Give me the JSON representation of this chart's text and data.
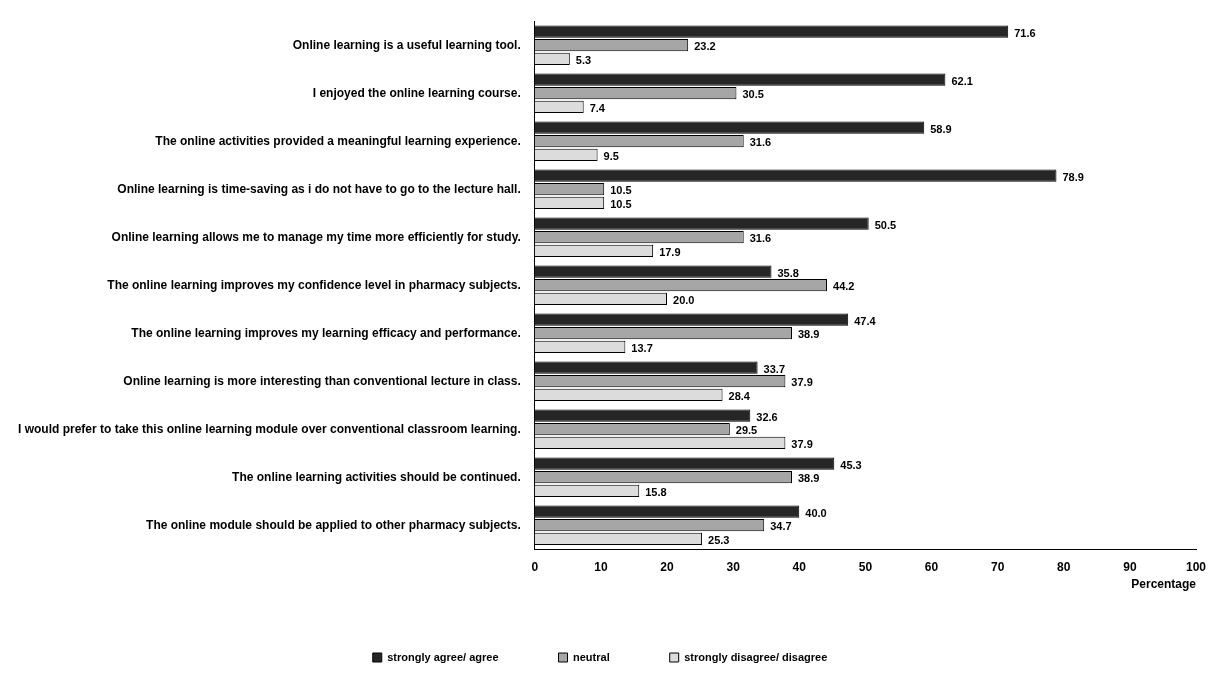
{
  "chart_data": {
    "type": "bar",
    "orientation": "horizontal",
    "xlabel": "Percentage",
    "categories": [
      "Online learning is a useful learning tool.",
      "I enjoyed the online learning course.",
      "The online activities provided a meaningful learning experience.",
      "Online learning is time-saving as i do not have to go to the lecture hall.",
      "Online learning allows me to manage my time more efficiently for study.",
      "The online learning improves my confidence level in pharmacy subjects.",
      "The online learning improves my learning efficacy and performance.",
      "Online learning is more interesting than conventional lecture in class.",
      "I would prefer to take this online learning module over conventional classroom learning.",
      "The online learning activities should be continued.",
      "The online module should be applied to other pharmacy subjects."
    ],
    "series": [
      {
        "name": "strongly agree/ agree",
        "color": "#262626",
        "values": [
          71.6,
          62.1,
          58.9,
          78.9,
          50.5,
          35.8,
          47.4,
          33.7,
          32.6,
          45.3,
          40.0
        ],
        "value_labels": [
          "71.6",
          "62.1",
          "58.9",
          "78.9",
          "50.5",
          "35.8",
          "47.4",
          "33.7",
          "32.6",
          "45.3",
          "40.0"
        ]
      },
      {
        "name": "neutral",
        "color": "#a6a6a6",
        "values": [
          23.2,
          30.5,
          31.6,
          10.5,
          31.6,
          44.2,
          38.9,
          37.9,
          29.5,
          38.9,
          34.7
        ],
        "value_labels": [
          "23.2",
          "30.5",
          "31.6",
          "10.5",
          "31.6",
          "44.2",
          "38.9",
          "37.9",
          "29.5",
          "38.9",
          "34.7"
        ]
      },
      {
        "name": "strongly disagree/ disagree",
        "color": "#dcdcdc",
        "values": [
          5.3,
          7.4,
          9.5,
          10.5,
          17.9,
          20.0,
          13.7,
          28.4,
          37.9,
          15.8,
          25.3
        ],
        "value_labels": [
          "5.3",
          "7.4",
          "9.5",
          "10.5",
          "17.9",
          "20.0",
          "13.7",
          "28.4",
          "37.9",
          "15.8",
          "25.3"
        ]
      }
    ],
    "xlim": [
      0,
      100
    ],
    "xticks": [
      0,
      10,
      20,
      30,
      40,
      50,
      60,
      70,
      80,
      90,
      100
    ],
    "grid": false,
    "legend": "bottom"
  }
}
